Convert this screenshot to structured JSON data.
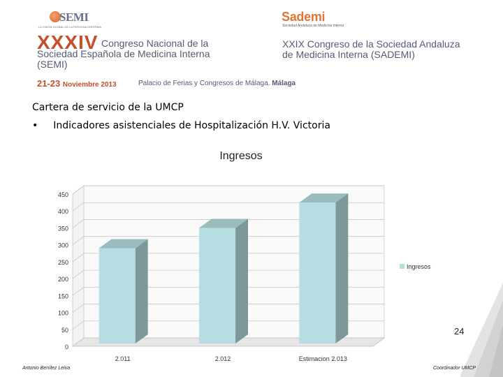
{
  "header": {
    "semi_logo": {
      "word": "SEMI",
      "tagline": "LA VISIÓN GLOBAL DE LA PERSONA ENFERMA"
    },
    "sademi_logo": {
      "word": "Sademi",
      "tagline": "Sociedad Andaluza de Medicina Interna"
    },
    "roman": "XXXIV",
    "congress_left": [
      "Congreso Nacional de la",
      "Sociedad Española de Medicina Interna",
      "(SEMI)"
    ],
    "congress_right": [
      "XXIX Congreso de la Sociedad Andaluza",
      "de Medicina Interna (SADEMI)"
    ],
    "date_days": "21-23",
    "date_month": "Noviembre 2013",
    "venue": "Palacio de Ferias y Congresos de Málaga.",
    "venue_city": "Málaga",
    "accent_color": "#c54f2a",
    "text_color": "#555a78"
  },
  "slide": {
    "subtitle": "Cartera de servicio de la UMCP",
    "bullet_char": "•",
    "bullet_text": "Indicadores asistenciales de Hospitalización H.V. Victoria",
    "page_number": "24"
  },
  "footer": {
    "left": "Antonio Benítez Leiva",
    "right": "Coordinador UMCP"
  },
  "chart_data": {
    "type": "bar",
    "title": "Ingresos",
    "categories": [
      "2.011",
      "2.012",
      "Estimacion 2.013"
    ],
    "series": [
      {
        "name": "Ingresos",
        "values": [
          290,
          350,
          425
        ]
      }
    ],
    "ylim": [
      0,
      450
    ],
    "yticks": [
      0,
      50,
      100,
      150,
      200,
      250,
      300,
      350,
      400,
      450
    ],
    "grid": true,
    "legend": "right",
    "style": "3d",
    "bar_color": "#b6dee2"
  }
}
